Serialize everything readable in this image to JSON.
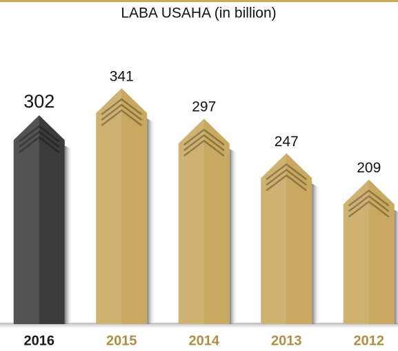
{
  "chart_data": {
    "type": "bar",
    "title": "LABA USAHA (in billion)",
    "categories": [
      "2016",
      "2015",
      "2014",
      "2013",
      "2012"
    ],
    "values": [
      302,
      341,
      297,
      247,
      209
    ],
    "colors": [
      "#3b3b3b",
      "#c9a85f",
      "#c9a85f",
      "#c9a85f",
      "#c9a85f"
    ],
    "label_colors": [
      "#1a1a1a",
      "#b08d45",
      "#b08d45",
      "#b08d45",
      "#b08d45"
    ]
  }
}
